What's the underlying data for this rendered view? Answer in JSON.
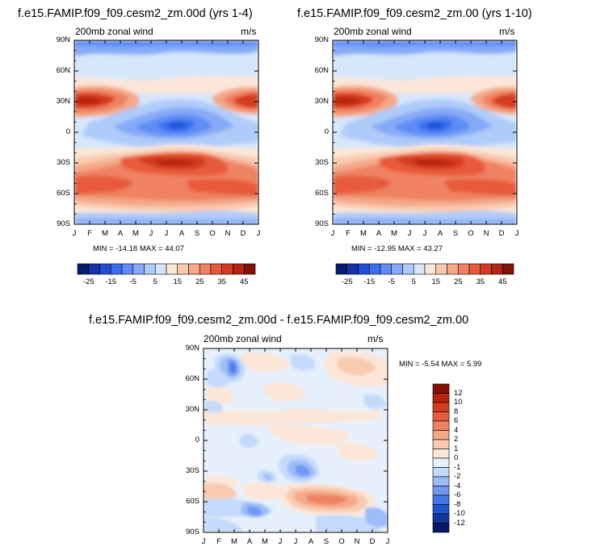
{
  "page": {
    "titles": {
      "left": "f.e15.FAMIP.f09_f09.cesm2_zm.00d (yrs 1-4)",
      "right": "f.e15.FAMIP.f09_f09.cesm2_zm.00 (yrs 1-10)",
      "bottom": "f.e15.FAMIP.f09_f09.cesm2_zm.00d - f.e15.FAMIP.f09_f09.cesm2_zm.00"
    }
  },
  "chart_data": [
    {
      "id": "left",
      "type": "heatmap",
      "title": "f.e15.FAMIP.f09_f09.cesm2_zm.00d (yrs 1-4)",
      "subtitle_left": "200mb zonal wind",
      "subtitle_right": "m/s",
      "x_ticks": [
        "J",
        "F",
        "M",
        "A",
        "M",
        "J",
        "J",
        "A",
        "S",
        "O",
        "N",
        "D",
        "J"
      ],
      "y_ticks": [
        "90N",
        "60N",
        "30N",
        "0",
        "30S",
        "60S",
        "90S"
      ],
      "ylim": [
        -90,
        90
      ],
      "min_max_text": "MIN = -14.18 MAX = 44.07",
      "min": -14.18,
      "max": 44.07,
      "colorbar": {
        "orientation": "horizontal",
        "labels": [
          "-25",
          "-15",
          "-5",
          "5",
          "15",
          "25",
          "35",
          "45"
        ],
        "levels": [
          -30,
          -25,
          -20,
          -15,
          -10,
          -5,
          0,
          5,
          10,
          15,
          20,
          25,
          30,
          35,
          40,
          45
        ],
        "colors": [
          "#0a1a6e",
          "#1632a8",
          "#1f4fd6",
          "#3b6ff0",
          "#5f8df5",
          "#86aaf7",
          "#aecbf9",
          "#d6e6fb",
          "#fbe6d8",
          "#f8cbb0",
          "#f4a988",
          "#ef8262",
          "#e75a3b",
          "#d63b1f",
          "#b52410",
          "#851006"
        ]
      }
    },
    {
      "id": "right",
      "type": "heatmap",
      "title": "f.e15.FAMIP.f09_f09.cesm2_zm.00 (yrs 1-10)",
      "subtitle_left": "200mb zonal wind",
      "subtitle_right": "m/s",
      "x_ticks": [
        "J",
        "F",
        "M",
        "A",
        "M",
        "J",
        "J",
        "A",
        "S",
        "O",
        "N",
        "D",
        "J"
      ],
      "y_ticks": [
        "90N",
        "60N",
        "30N",
        "0",
        "30S",
        "60S",
        "90S"
      ],
      "ylim": [
        -90,
        90
      ],
      "min_max_text": "MIN = -12.95 MAX = 43.27",
      "min": -12.95,
      "max": 43.27,
      "colorbar": {
        "orientation": "horizontal",
        "labels": [
          "-25",
          "-15",
          "-5",
          "5",
          "15",
          "25",
          "35",
          "45"
        ],
        "levels": [
          -30,
          -25,
          -20,
          -15,
          -10,
          -5,
          0,
          5,
          10,
          15,
          20,
          25,
          30,
          35,
          40,
          45
        ],
        "colors": [
          "#0a1a6e",
          "#1632a8",
          "#1f4fd6",
          "#3b6ff0",
          "#5f8df5",
          "#86aaf7",
          "#aecbf9",
          "#d6e6fb",
          "#fbe6d8",
          "#f8cbb0",
          "#f4a988",
          "#ef8262",
          "#e75a3b",
          "#d63b1f",
          "#b52410",
          "#851006"
        ]
      }
    },
    {
      "id": "diff",
      "type": "heatmap",
      "title": "f.e15.FAMIP.f09_f09.cesm2_zm.00d - f.e15.FAMIP.f09_f09.cesm2_zm.00",
      "subtitle_left": "200mb zonal wind",
      "subtitle_right": "m/s",
      "x_ticks": [
        "J",
        "F",
        "M",
        "A",
        "M",
        "J",
        "J",
        "A",
        "S",
        "O",
        "N",
        "D",
        "J"
      ],
      "y_ticks": [
        "90N",
        "60N",
        "30N",
        "0",
        "30S",
        "60S",
        "90S"
      ],
      "ylim": [
        -90,
        90
      ],
      "min_max_text": "MIN =  -5.54 MAX =   5.99",
      "min": -5.54,
      "max": 5.99,
      "colorbar": {
        "orientation": "vertical",
        "labels": [
          "12",
          "10",
          "8",
          "6",
          "4",
          "2",
          "1",
          "0",
          "-1",
          "-2",
          "-4",
          "-6",
          "-8",
          "-10",
          "-12"
        ],
        "colors": [
          "#851006",
          "#b52410",
          "#d63b1f",
          "#e75a3b",
          "#ef8262",
          "#f4a988",
          "#f8cbb0",
          "#fbe6d8",
          "#e6f0fc",
          "#c4dafa",
          "#9cbdf8",
          "#6f98f3",
          "#4577e8",
          "#2455d0",
          "#12349c",
          "#071a6a"
        ]
      }
    }
  ]
}
